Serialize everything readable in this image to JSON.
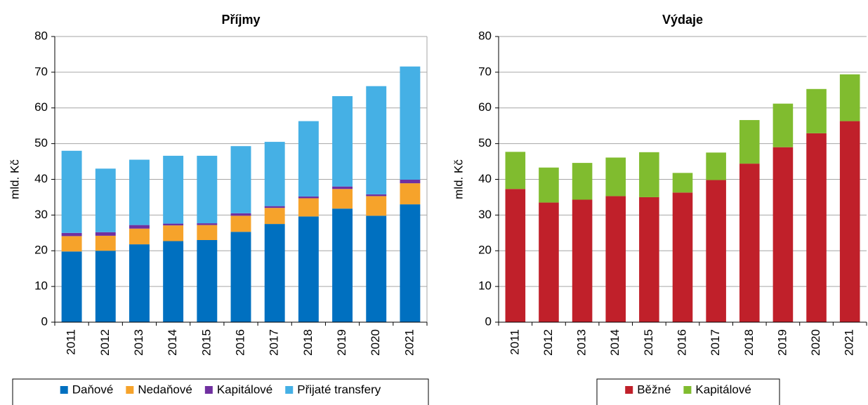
{
  "chart_data": [
    {
      "type": "stacked_bar",
      "title": "Příjmy",
      "ylabel": "mld. Kč",
      "categories": [
        "2011",
        "2012",
        "2013",
        "2014",
        "2015",
        "2016",
        "2017",
        "2018",
        "2019",
        "2020",
        "2021"
      ],
      "series": [
        {
          "name": "Daňové",
          "color": "#0070c0",
          "values": [
            19.8,
            20.0,
            21.8,
            22.7,
            23.0,
            25.3,
            27.5,
            29.6,
            31.8,
            29.8,
            33.0
          ]
        },
        {
          "name": "Nedaňové",
          "color": "#f6a32b",
          "values": [
            4.3,
            4.2,
            4.4,
            4.4,
            4.2,
            4.5,
            4.5,
            5.1,
            5.5,
            5.5,
            5.9
          ]
        },
        {
          "name": "Kapitálové",
          "color": "#7030a0",
          "values": [
            0.9,
            1.0,
            1.0,
            0.5,
            0.5,
            0.7,
            0.5,
            0.5,
            0.7,
            0.5,
            1.0
          ]
        },
        {
          "name": "Přijaté transfery",
          "color": "#45b0e5",
          "values": [
            23.0,
            17.8,
            18.3,
            19.0,
            18.9,
            18.8,
            18.0,
            21.1,
            25.3,
            30.3,
            31.7
          ]
        }
      ],
      "ylim": [
        0,
        80
      ],
      "yticks": [
        0,
        10,
        20,
        30,
        40,
        50,
        60,
        70,
        80
      ],
      "grid": true
    },
    {
      "type": "stacked_bar",
      "title": "Výdaje",
      "ylabel": "mld. Kč",
      "categories": [
        "2011",
        "2012",
        "2013",
        "2014",
        "2015",
        "2016",
        "2017",
        "2018",
        "2019",
        "2020",
        "2021"
      ],
      "series": [
        {
          "name": "Běžné",
          "color": "#c0202a",
          "values": [
            37.3,
            33.5,
            34.3,
            35.3,
            35.0,
            36.3,
            39.8,
            44.4,
            49.0,
            52.9,
            56.3
          ]
        },
        {
          "name": "Kapitálové",
          "color": "#80bc2f",
          "values": [
            10.4,
            9.8,
            10.3,
            10.8,
            12.6,
            5.5,
            7.7,
            12.2,
            12.2,
            12.4,
            13.1
          ]
        }
      ],
      "ylim": [
        0,
        80
      ],
      "yticks": [
        0,
        10,
        20,
        30,
        40,
        50,
        60,
        70,
        80
      ],
      "grid": true
    }
  ]
}
